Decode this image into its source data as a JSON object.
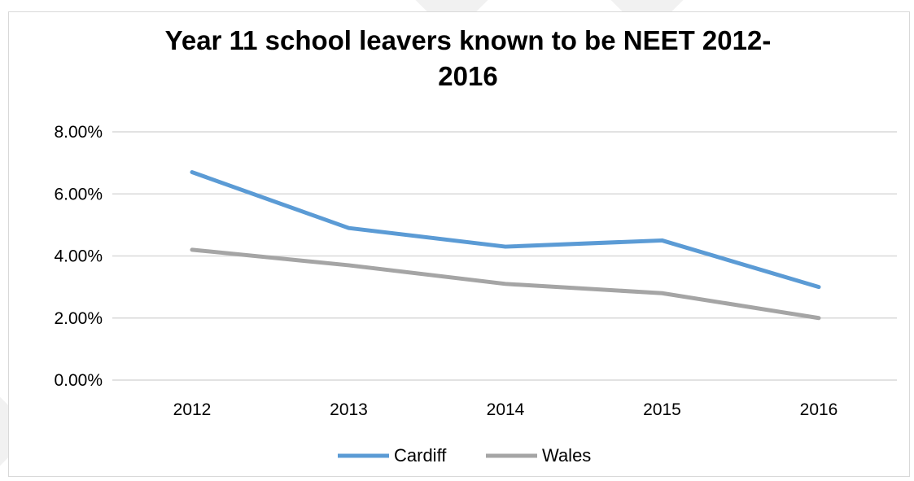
{
  "chart_data": {
    "type": "line",
    "title_line1": "Year 11 school leavers known to be NEET 2012-",
    "title_line2": "2016",
    "categories": [
      "2012",
      "2013",
      "2014",
      "2015",
      "2016"
    ],
    "ylim": [
      0,
      8
    ],
    "yticks": [
      0,
      2,
      4,
      6,
      8
    ],
    "ytick_labels": [
      "0.00%",
      "2.00%",
      "4.00%",
      "6.00%",
      "8.00%"
    ],
    "grid": true,
    "legend_position": "bottom",
    "series": [
      {
        "name": "Cardiff",
        "values": [
          6.7,
          4.9,
          4.3,
          4.5,
          3.0
        ],
        "color": "#5b9bd5"
      },
      {
        "name": "Wales",
        "values": [
          4.2,
          3.7,
          3.1,
          2.8,
          2.0
        ],
        "color": "#a5a5a5"
      }
    ]
  }
}
